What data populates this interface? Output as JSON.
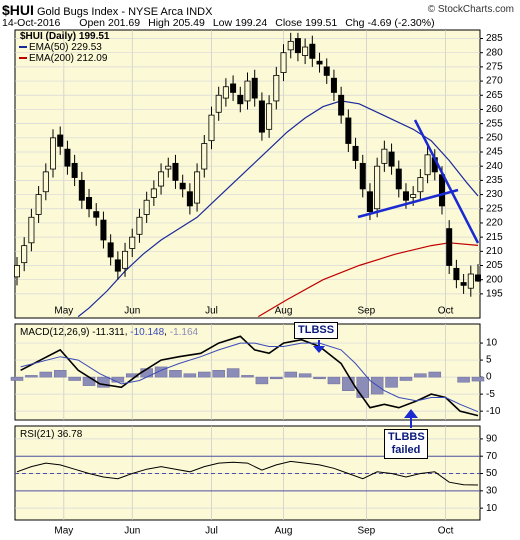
{
  "header": {
    "symbol": "$HUI",
    "description": "Gold Bugs Index - NYSE Arca INDX",
    "copyright": "© StockCharts.com",
    "date": "14-Oct-2016",
    "quote": [
      {
        "label": "Open",
        "value": "201.69"
      },
      {
        "label": "High",
        "value": "205.49"
      },
      {
        "label": "Low",
        "value": "199.24"
      },
      {
        "label": "Close",
        "value": "199.51"
      },
      {
        "label": "Chg",
        "value": "-4.69 (-2.30%)"
      }
    ]
  },
  "chart_data": [
    {
      "type": "candlestick",
      "name": "$HUI (Daily)",
      "legend_value": "199.51",
      "color": "#000000",
      "x": [
        0,
        2,
        4,
        6,
        8,
        10,
        12,
        14,
        16,
        18,
        20,
        22,
        24,
        26,
        28,
        30,
        32,
        34,
        36,
        38,
        40,
        42,
        44,
        46,
        48,
        50,
        52,
        54,
        56,
        58,
        60,
        62,
        64,
        66,
        68,
        70,
        72,
        74,
        76,
        78,
        80,
        82,
        84,
        86,
        88,
        90,
        92,
        94,
        96,
        98,
        100,
        102,
        104,
        106,
        108,
        110,
        112,
        114,
        116,
        118,
        120,
        122,
        124,
        126,
        128
      ],
      "open": [
        201,
        206,
        213,
        223,
        231,
        239,
        251,
        246,
        241,
        235,
        229,
        224,
        221,
        213,
        207,
        204,
        211,
        216,
        223,
        229,
        233,
        239,
        241,
        234,
        231,
        227,
        239,
        249,
        259,
        264,
        269,
        265,
        263,
        271,
        263,
        253,
        263,
        273,
        281,
        285,
        279,
        283,
        277,
        275,
        271,
        265,
        257,
        247,
        241,
        231,
        225,
        241,
        245,
        239,
        231,
        229,
        231,
        237,
        243,
        237,
        218,
        204,
        199,
        197,
        201.69
      ],
      "high": [
        208,
        215,
        225,
        233,
        241,
        253,
        254,
        249,
        244,
        238,
        232,
        227,
        224,
        216,
        210,
        213,
        218,
        225,
        231,
        235,
        241,
        243,
        244,
        237,
        234,
        241,
        251,
        261,
        268,
        271,
        272,
        268,
        273,
        274,
        266,
        265,
        275,
        283,
        287,
        287,
        285,
        286,
        280,
        278,
        274,
        268,
        260,
        250,
        244,
        234,
        243,
        249,
        248,
        242,
        234,
        233,
        239,
        247,
        246,
        240,
        221,
        207,
        202,
        205,
        205.49
      ],
      "low": [
        198,
        203,
        210,
        220,
        228,
        236,
        244,
        237,
        233,
        225,
        222,
        219,
        211,
        205,
        200,
        201,
        208,
        213,
        220,
        226,
        230,
        236,
        232,
        229,
        223,
        224,
        236,
        246,
        256,
        261,
        263,
        259,
        260,
        261,
        249,
        250,
        260,
        270,
        278,
        277,
        276,
        275,
        273,
        269,
        263,
        255,
        245,
        239,
        229,
        221,
        222,
        238,
        237,
        229,
        225,
        226,
        228,
        234,
        235,
        223,
        202,
        197,
        195,
        194,
        199.24
      ],
      "close": [
        205,
        212,
        222,
        230,
        238,
        250,
        247,
        240,
        236,
        228,
        225,
        222,
        214,
        208,
        203,
        210,
        215,
        222,
        228,
        232,
        238,
        240,
        235,
        232,
        226,
        238,
        248,
        258,
        265,
        268,
        266,
        262,
        270,
        264,
        252,
        262,
        272,
        280,
        284,
        280,
        282,
        278,
        276,
        272,
        266,
        258,
        248,
        242,
        232,
        224,
        240,
        246,
        240,
        232,
        228,
        230,
        236,
        244,
        238,
        226,
        205,
        200,
        198,
        202,
        199.51
      ],
      "series": [
        {
          "name": "EMA(50)",
          "legend_value": "229.53",
          "color": "#1a2a9a",
          "x": [
            17,
            20,
            25,
            30,
            35,
            40,
            45,
            50,
            55,
            60,
            65,
            70,
            75,
            80,
            85,
            90,
            95,
            100,
            105,
            110,
            115,
            120,
            125,
            128
          ],
          "values": [
            187,
            190,
            196,
            203,
            209,
            214,
            218,
            222,
            228,
            234,
            240,
            246,
            252,
            257,
            261,
            263,
            262,
            259,
            256,
            253,
            249,
            242,
            234,
            229.53
          ]
        },
        {
          "name": "EMA(200)",
          "legend_value": "212.09",
          "color": "#c00000",
          "x": [
            67,
            75,
            85,
            95,
            105,
            115,
            120,
            128
          ],
          "values": [
            187,
            193,
            200,
            205,
            209,
            212,
            213,
            212.09
          ]
        }
      ],
      "xlim": [
        0,
        128
      ],
      "xticks": [
        {
          "value": 13,
          "label": "May"
        },
        {
          "value": 32,
          "label": "Jun"
        },
        {
          "value": 54,
          "label": "Jul"
        },
        {
          "value": 74,
          "label": "Aug"
        },
        {
          "value": 97,
          "label": "Sep"
        },
        {
          "value": 119,
          "label": "Oct"
        }
      ],
      "ylim": [
        186.5,
        288
      ],
      "yticks": [
        195,
        200,
        205,
        210,
        215,
        220,
        225,
        230,
        235,
        240,
        245,
        250,
        255,
        260,
        265,
        270,
        275,
        280,
        285
      ],
      "grid": true
    },
    {
      "type": "macd",
      "title": "MACD(12,26,9)",
      "annotations": [
        "TLBSS",
        "TLBBS failed"
      ],
      "series": [
        {
          "kind": "line",
          "legend_value": "-11.311",
          "color": "#000000",
          "x": [
            1,
            12,
            17,
            23,
            29,
            34,
            40,
            45,
            51,
            56,
            62,
            66,
            70,
            74,
            79,
            84,
            90,
            94,
            98,
            102,
            106,
            111,
            115,
            119,
            123,
            128
          ],
          "values": [
            2,
            8,
            2,
            -2,
            -3,
            1,
            5,
            6,
            7,
            10,
            12,
            8,
            7,
            10,
            11,
            9,
            4,
            -3,
            -9,
            -8,
            -9,
            -7,
            -5,
            -6,
            -10,
            -11.311
          ]
        },
        {
          "kind": "line",
          "legend_value": "-10.148",
          "color": "#3a4ab8",
          "x": [
            1,
            12,
            17,
            23,
            29,
            34,
            40,
            45,
            51,
            56,
            62,
            66,
            70,
            74,
            79,
            84,
            90,
            94,
            98,
            102,
            106,
            111,
            115,
            119,
            123,
            128
          ],
          "values": [
            3,
            6,
            5,
            1,
            -2,
            -1,
            2,
            4,
            6,
            8,
            10,
            10,
            9,
            9,
            10,
            10,
            8,
            4,
            -1,
            -4,
            -6,
            -7,
            -6,
            -6,
            -8,
            -10.148
          ]
        },
        {
          "kind": "histogram",
          "legend_value": "-1.164",
          "color": "#8c8cb8",
          "x": [
            0,
            4,
            8,
            12,
            16,
            20,
            24,
            28,
            32,
            36,
            40,
            44,
            48,
            52,
            56,
            60,
            64,
            68,
            72,
            76,
            80,
            84,
            88,
            92,
            96,
            100,
            104,
            108,
            112,
            116,
            120,
            124,
            128
          ],
          "values": [
            -1,
            0.5,
            1.5,
            2,
            -1,
            -2.5,
            -3,
            -1.5,
            1,
            2.5,
            3,
            2,
            1,
            1.5,
            2,
            2.5,
            0.5,
            -2,
            -0.5,
            1.5,
            1,
            -0.5,
            -2,
            -4,
            -6,
            -5,
            -3,
            -1,
            1,
            1.5,
            0,
            -1.5,
            -1.164
          ]
        }
      ],
      "ylim": [
        -12.6,
        15.6
      ],
      "yticks": [
        -10,
        -5,
        0,
        5,
        10
      ]
    },
    {
      "type": "line",
      "title": "RSI(21)",
      "legend_value": "36.78",
      "color": "#000000",
      "x": [
        0,
        4,
        8,
        12,
        16,
        20,
        24,
        28,
        32,
        36,
        40,
        44,
        48,
        52,
        56,
        60,
        64,
        68,
        72,
        76,
        80,
        84,
        88,
        92,
        96,
        100,
        104,
        108,
        112,
        116,
        120,
        124,
        128
      ],
      "values": [
        52,
        58,
        62,
        60,
        55,
        50,
        46,
        44,
        50,
        55,
        58,
        55,
        52,
        58,
        62,
        63,
        62,
        54,
        60,
        64,
        62,
        60,
        56,
        50,
        44,
        52,
        50,
        46,
        50,
        52,
        40,
        37,
        36.78
      ],
      "reference_lines": [
        30,
        50,
        70
      ],
      "ylim": [
        -3.7,
        104.9
      ],
      "yticks": [
        10,
        30,
        50,
        70,
        90
      ]
    }
  ]
}
